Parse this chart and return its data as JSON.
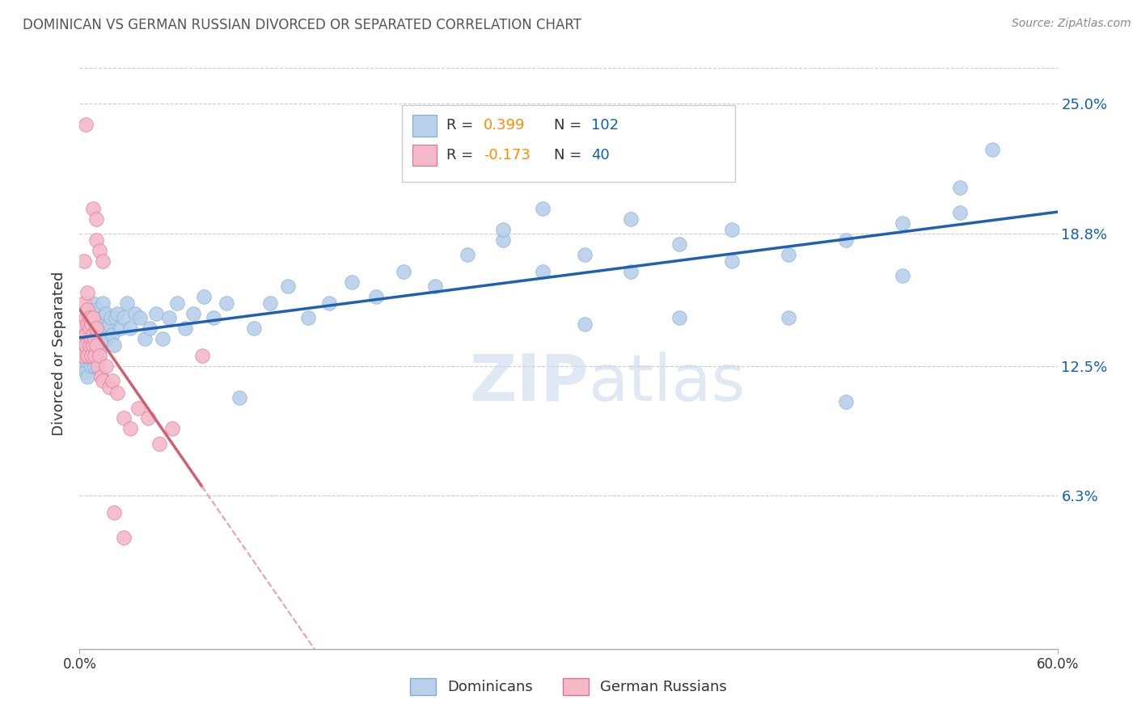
{
  "title": "DOMINICAN VS GERMAN RUSSIAN DIVORCED OR SEPARATED CORRELATION CHART",
  "source": "Source: ZipAtlas.com",
  "ylabel": "Divorced or Separated",
  "ytick_labels": [
    "6.3%",
    "12.5%",
    "18.8%",
    "25.0%"
  ],
  "ytick_values": [
    0.063,
    0.125,
    0.188,
    0.25
  ],
  "xmin": 0.0,
  "xmax": 0.6,
  "ymin": -0.01,
  "ymax": 0.272,
  "dominican_R": 0.399,
  "dominican_N": 102,
  "german_russian_R": -0.173,
  "german_russian_N": 40,
  "watermark": "ZIPAtlas",
  "dominican_color": "#b8d0ea",
  "dominican_edge": "#7aafd4",
  "german_russian_color": "#f4b8c8",
  "german_russian_edge": "#e07090",
  "blue_line_color": "#2060b0",
  "pink_line_color": "#d06070",
  "pink_dashed_color": "#e8a0a8",
  "legend_R_color": "#ff8c00",
  "legend_N_color": "#1060b0",
  "text_color": "#333333",
  "dominican_x": [
    0.001,
    0.002,
    0.002,
    0.003,
    0.003,
    0.003,
    0.004,
    0.004,
    0.004,
    0.005,
    0.005,
    0.005,
    0.005,
    0.006,
    0.006,
    0.006,
    0.006,
    0.007,
    0.007,
    0.007,
    0.007,
    0.007,
    0.008,
    0.008,
    0.008,
    0.008,
    0.008,
    0.009,
    0.009,
    0.009,
    0.009,
    0.01,
    0.01,
    0.01,
    0.011,
    0.011,
    0.011,
    0.012,
    0.012,
    0.013,
    0.013,
    0.014,
    0.014,
    0.015,
    0.016,
    0.016,
    0.017,
    0.018,
    0.019,
    0.02,
    0.021,
    0.022,
    0.023,
    0.025,
    0.027,
    0.029,
    0.031,
    0.034,
    0.037,
    0.04,
    0.043,
    0.047,
    0.051,
    0.055,
    0.06,
    0.065,
    0.07,
    0.076,
    0.082,
    0.09,
    0.098,
    0.107,
    0.117,
    0.128,
    0.14,
    0.153,
    0.167,
    0.182,
    0.199,
    0.218,
    0.238,
    0.26,
    0.284,
    0.31,
    0.338,
    0.368,
    0.4,
    0.435,
    0.47,
    0.505,
    0.54,
    0.56,
    0.505,
    0.47,
    0.54,
    0.435,
    0.4,
    0.368,
    0.338,
    0.31,
    0.284,
    0.26
  ],
  "dominican_y": [
    0.132,
    0.128,
    0.135,
    0.13,
    0.125,
    0.138,
    0.122,
    0.133,
    0.14,
    0.127,
    0.135,
    0.142,
    0.12,
    0.13,
    0.138,
    0.145,
    0.128,
    0.135,
    0.14,
    0.125,
    0.148,
    0.132,
    0.138,
    0.143,
    0.128,
    0.135,
    0.155,
    0.13,
    0.14,
    0.148,
    0.125,
    0.135,
    0.143,
    0.152,
    0.138,
    0.145,
    0.128,
    0.14,
    0.133,
    0.148,
    0.138,
    0.145,
    0.155,
    0.138,
    0.143,
    0.15,
    0.138,
    0.145,
    0.148,
    0.14,
    0.135,
    0.148,
    0.15,
    0.143,
    0.148,
    0.155,
    0.143,
    0.15,
    0.148,
    0.138,
    0.143,
    0.15,
    0.138,
    0.148,
    0.155,
    0.143,
    0.15,
    0.158,
    0.148,
    0.155,
    0.11,
    0.143,
    0.155,
    0.163,
    0.148,
    0.155,
    0.165,
    0.158,
    0.17,
    0.163,
    0.178,
    0.185,
    0.17,
    0.178,
    0.195,
    0.183,
    0.19,
    0.178,
    0.185,
    0.193,
    0.198,
    0.228,
    0.168,
    0.108,
    0.21,
    0.148,
    0.175,
    0.148,
    0.17,
    0.145,
    0.2,
    0.19
  ],
  "german_russian_x": [
    0.001,
    0.002,
    0.002,
    0.003,
    0.003,
    0.004,
    0.004,
    0.004,
    0.005,
    0.005,
    0.005,
    0.005,
    0.006,
    0.006,
    0.006,
    0.007,
    0.007,
    0.007,
    0.008,
    0.008,
    0.008,
    0.009,
    0.009,
    0.01,
    0.01,
    0.011,
    0.012,
    0.013,
    0.014,
    0.016,
    0.018,
    0.02,
    0.023,
    0.027,
    0.031,
    0.036,
    0.042,
    0.049,
    0.057,
    0.075
  ],
  "german_russian_y": [
    0.138,
    0.145,
    0.13,
    0.155,
    0.175,
    0.148,
    0.14,
    0.135,
    0.13,
    0.145,
    0.152,
    0.16,
    0.135,
    0.143,
    0.148,
    0.138,
    0.145,
    0.13,
    0.14,
    0.135,
    0.148,
    0.13,
    0.138,
    0.143,
    0.135,
    0.125,
    0.13,
    0.12,
    0.118,
    0.125,
    0.115,
    0.118,
    0.112,
    0.1,
    0.095,
    0.105,
    0.1,
    0.088,
    0.095,
    0.13
  ],
  "gr_outlier_x": [
    0.004,
    0.008,
    0.01,
    0.01,
    0.012,
    0.014,
    0.021,
    0.027
  ],
  "gr_outlier_y": [
    0.24,
    0.2,
    0.195,
    0.185,
    0.18,
    0.175,
    0.055,
    0.043
  ]
}
